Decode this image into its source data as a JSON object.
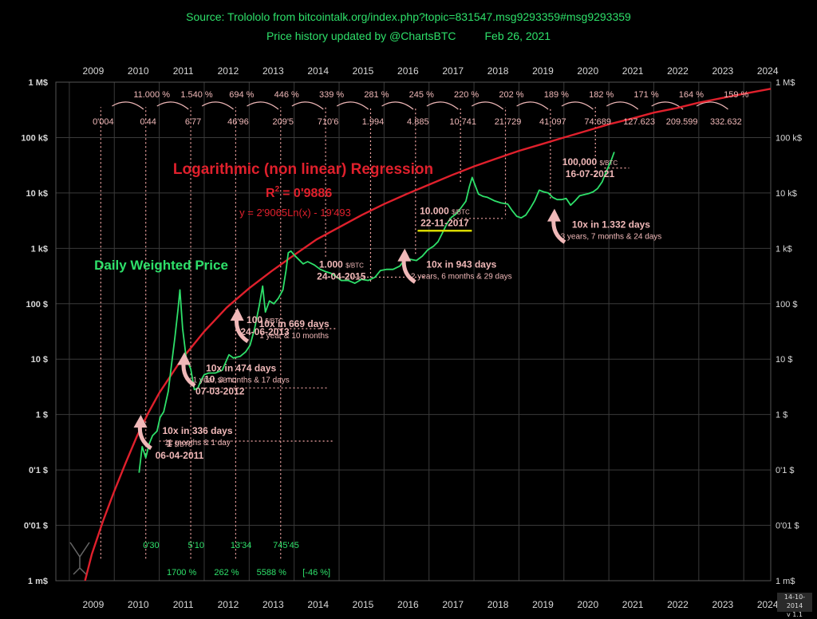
{
  "header": {
    "source": "Source: Trolololo from bitcointalk.org/index.php?topic=831547.msg9293359#msg9293359",
    "updated": "Price history updated by @ChartsBTC",
    "updated_date": "Feb 26, 2021"
  },
  "version_badge": {
    "date": "14-10-2014",
    "version": "v 1.1"
  },
  "colors": {
    "background": "#000000",
    "regression": "#e0202c",
    "price": "#2ee06a",
    "annotation": "#f0b8b8",
    "grid": "#3a3a3a",
    "axis_text": "#d8d8d8",
    "header_text": "#2ee06a",
    "dotted_guides": "#f4a6a6",
    "highlight_underline": "#d8d800"
  },
  "chart_data": {
    "type": "line",
    "scale": "log",
    "grid": true,
    "x_ticks": [
      "2009",
      "2010",
      "2011",
      "2012",
      "2013",
      "2014",
      "2015",
      "2016",
      "2017",
      "2018",
      "2019",
      "2020",
      "2021",
      "2022",
      "2023",
      "2024"
    ],
    "y_ticks_left": [
      "1 M$",
      "100 k$",
      "10 k$",
      "1 k$",
      "100 $",
      "10 $",
      "1 $",
      "0'1 $",
      "0'01 $",
      "1 m$"
    ],
    "y_ticks_right": [
      "1 M$",
      "100 k$",
      "10 k$",
      "1 k$",
      "100 $",
      "10 $",
      "1 $",
      "0'1 $",
      "0'01 $",
      "1 m$"
    ],
    "xlim": [
      2008.7,
      2024.6
    ],
    "ylim_decades": [
      -3,
      6
    ],
    "regression": {
      "name": "Logarithmic (non linear) Regression",
      "r_squared_label": "R",
      "r_squared_power": "2",
      "r_squared_value": "= 0'9886",
      "formula": "y = 2'9065Ln(x) - 19'493",
      "points": [
        [
          2009.35,
          -3.0
        ],
        [
          2009.5,
          -2.52
        ],
        [
          2009.75,
          -1.92
        ],
        [
          2010.0,
          -1.38
        ],
        [
          2010.25,
          -0.88
        ],
        [
          2010.5,
          -0.4
        ],
        [
          2010.75,
          0.02
        ],
        [
          2011.0,
          0.39
        ],
        [
          2011.5,
          1.0
        ],
        [
          2012.0,
          1.5
        ],
        [
          2012.5,
          1.93
        ],
        [
          2013.0,
          2.28
        ],
        [
          2013.5,
          2.59
        ],
        [
          2014.0,
          2.88
        ],
        [
          2014.5,
          3.16
        ],
        [
          2015.0,
          3.38
        ],
        [
          2015.5,
          3.6
        ],
        [
          2016.0,
          3.8
        ],
        [
          2016.5,
          3.98
        ],
        [
          2017.0,
          4.15
        ],
        [
          2017.5,
          4.32
        ],
        [
          2018.0,
          4.48
        ],
        [
          2018.5,
          4.62
        ],
        [
          2019.0,
          4.76
        ],
        [
          2019.5,
          4.88
        ],
        [
          2020.0,
          5.0
        ],
        [
          2020.5,
          5.12
        ],
        [
          2021.0,
          5.24
        ],
        [
          2021.5,
          5.34
        ],
        [
          2022.0,
          5.45
        ],
        [
          2022.5,
          5.53
        ],
        [
          2023.0,
          5.63
        ],
        [
          2023.5,
          5.71
        ],
        [
          2024.0,
          5.79
        ],
        [
          2024.6,
          5.88
        ]
      ]
    },
    "price_series": {
      "name": "Daily Weighted Price",
      "points": [
        [
          2010.55,
          -1.05
        ],
        [
          2010.62,
          -0.58
        ],
        [
          2010.7,
          -0.78
        ],
        [
          2010.78,
          -0.52
        ],
        [
          2010.85,
          -0.38
        ],
        [
          2010.95,
          -0.3
        ],
        [
          2011.02,
          -0.05
        ],
        [
          2011.1,
          0.05
        ],
        [
          2011.2,
          0.42
        ],
        [
          2011.28,
          0.95
        ],
        [
          2011.35,
          1.4
        ],
        [
          2011.42,
          1.92
        ],
        [
          2011.46,
          2.25
        ],
        [
          2011.52,
          1.55
        ],
        [
          2011.6,
          1.02
        ],
        [
          2011.7,
          0.82
        ],
        [
          2011.78,
          0.45
        ],
        [
          2011.86,
          0.48
        ],
        [
          2011.93,
          0.62
        ],
        [
          2012.0,
          0.72
        ],
        [
          2012.1,
          0.75
        ],
        [
          2012.25,
          0.75
        ],
        [
          2012.4,
          0.8
        ],
        [
          2012.55,
          1.08
        ],
        [
          2012.65,
          1.02
        ],
        [
          2012.8,
          1.05
        ],
        [
          2012.92,
          1.13
        ],
        [
          2013.02,
          1.25
        ],
        [
          2013.12,
          1.55
        ],
        [
          2013.22,
          1.95
        ],
        [
          2013.3,
          2.32
        ],
        [
          2013.36,
          1.85
        ],
        [
          2013.45,
          2.05
        ],
        [
          2013.55,
          2.0
        ],
        [
          2013.65,
          2.1
        ],
        [
          2013.75,
          2.25
        ],
        [
          2013.82,
          2.6
        ],
        [
          2013.87,
          2.92
        ],
        [
          2013.93,
          2.95
        ],
        [
          2014.0,
          2.88
        ],
        [
          2014.1,
          2.8
        ],
        [
          2014.2,
          2.72
        ],
        [
          2014.3,
          2.76
        ],
        [
          2014.45,
          2.7
        ],
        [
          2014.58,
          2.62
        ],
        [
          2014.7,
          2.58
        ],
        [
          2014.82,
          2.55
        ],
        [
          2014.95,
          2.48
        ],
        [
          2015.05,
          2.42
        ],
        [
          2015.2,
          2.42
        ],
        [
          2015.35,
          2.37
        ],
        [
          2015.5,
          2.44
        ],
        [
          2015.65,
          2.42
        ],
        [
          2015.8,
          2.48
        ],
        [
          2015.92,
          2.6
        ],
        [
          2016.05,
          2.62
        ],
        [
          2016.2,
          2.62
        ],
        [
          2016.35,
          2.68
        ],
        [
          2016.48,
          2.82
        ],
        [
          2016.6,
          2.8
        ],
        [
          2016.72,
          2.78
        ],
        [
          2016.85,
          2.86
        ],
        [
          2016.97,
          2.97
        ],
        [
          2017.1,
          3.04
        ],
        [
          2017.2,
          3.12
        ],
        [
          2017.3,
          3.28
        ],
        [
          2017.4,
          3.45
        ],
        [
          2017.5,
          3.56
        ],
        [
          2017.6,
          3.62
        ],
        [
          2017.72,
          3.74
        ],
        [
          2017.82,
          3.85
        ],
        [
          2017.9,
          4.12
        ],
        [
          2017.96,
          4.28
        ],
        [
          2018.02,
          4.15
        ],
        [
          2018.1,
          3.98
        ],
        [
          2018.2,
          3.94
        ],
        [
          2018.3,
          3.92
        ],
        [
          2018.45,
          3.86
        ],
        [
          2018.6,
          3.82
        ],
        [
          2018.75,
          3.8
        ],
        [
          2018.85,
          3.68
        ],
        [
          2018.95,
          3.58
        ],
        [
          2019.05,
          3.55
        ],
        [
          2019.15,
          3.6
        ],
        [
          2019.25,
          3.72
        ],
        [
          2019.35,
          3.86
        ],
        [
          2019.45,
          4.05
        ],
        [
          2019.55,
          4.02
        ],
        [
          2019.65,
          4.0
        ],
        [
          2019.75,
          3.92
        ],
        [
          2019.85,
          3.88
        ],
        [
          2019.95,
          3.88
        ],
        [
          2020.05,
          3.9
        ],
        [
          2020.15,
          3.78
        ],
        [
          2020.25,
          3.86
        ],
        [
          2020.35,
          3.95
        ],
        [
          2020.45,
          3.97
        ],
        [
          2020.55,
          3.99
        ],
        [
          2020.65,
          4.02
        ],
        [
          2020.75,
          4.08
        ],
        [
          2020.85,
          4.2
        ],
        [
          2020.95,
          4.4
        ],
        [
          2021.05,
          4.58
        ],
        [
          2021.12,
          4.74
        ]
      ]
    },
    "period_growth": [
      {
        "label": "11.000 %",
        "x": 2010.3
      },
      {
        "label": "1.540 %",
        "x": 2011.3
      },
      {
        "label": "694 %",
        "x": 2012.3
      },
      {
        "label": "446 %",
        "x": 2013.3
      },
      {
        "label": "339 %",
        "x": 2014.3
      },
      {
        "label": "281 %",
        "x": 2015.3
      },
      {
        "label": "245 %",
        "x": 2016.3
      },
      {
        "label": "220 %",
        "x": 2017.3
      },
      {
        "label": "202 %",
        "x": 2018.3
      },
      {
        "label": "189 %",
        "x": 2019.3
      },
      {
        "label": "182 %",
        "x": 2020.3
      },
      {
        "label": "171 %",
        "x": 2021.3
      },
      {
        "label": "164 %",
        "x": 2022.3
      },
      {
        "label": "159 %",
        "x": 2023.3
      }
    ],
    "regression_year_values": [
      {
        "label": "0'004",
        "x": 2009.7
      },
      {
        "label": "0'44",
        "x": 2010.7
      },
      {
        "label": "6'77",
        "x": 2011.7
      },
      {
        "label": "46'96",
        "x": 2012.7
      },
      {
        "label": "209'5",
        "x": 2013.7
      },
      {
        "label": "710'6",
        "x": 2014.7
      },
      {
        "label": "1.994",
        "x": 2015.7
      },
      {
        "label": "4.885",
        "x": 2016.7
      },
      {
        "label": "10.741",
        "x": 2017.7
      },
      {
        "label": "21.729",
        "x": 2018.7
      },
      {
        "label": "41.097",
        "x": 2019.7
      },
      {
        "label": "74.689",
        "x": 2020.7
      },
      {
        "label": "127.623",
        "x": 2021.62
      },
      {
        "label": "209.599",
        "x": 2022.57
      },
      {
        "label": "332.632",
        "x": 2023.55
      }
    ],
    "early_values": [
      {
        "label": "0'30",
        "x": 2010.5
      },
      {
        "label": "5'10",
        "x": 2011.5
      },
      {
        "label": "13'34",
        "x": 2012.5
      },
      {
        "label": "745'45",
        "x": 2013.5
      }
    ],
    "early_growth": [
      {
        "label": "1700 %",
        "x": 2011.0
      },
      {
        "label": "262 %",
        "x": 2012.0
      },
      {
        "label": "5588 %",
        "x": 2013.0
      },
      {
        "label": "[-46 %]",
        "x": 2014.0
      }
    ],
    "milestones": [
      {
        "price": "1",
        "unit": "$/BTC",
        "date": "06-04-2011",
        "x": 2011.45,
        "y": -0.58
      },
      {
        "price": "10",
        "unit": "$/BTC",
        "date": "07-03-2012",
        "x": 2012.35,
        "y": 0.58
      },
      {
        "price": "100",
        "unit": "$/BTC",
        "date": "24-06-2013",
        "x": 2013.35,
        "y": 1.65
      },
      {
        "price": "1.000",
        "unit": "$/BTC",
        "date": "24-04-2015",
        "x": 2015.05,
        "y": 2.65
      },
      {
        "price": "10.000",
        "unit": "$/BTC",
        "date": "22-11-2017",
        "x": 2017.35,
        "y": 3.62
      },
      {
        "price": "100,000",
        "unit": "$/BTC",
        "date": "16-07-2021",
        "x": 2020.58,
        "y": 4.5
      }
    ],
    "intervals": [
      {
        "title": "10x in 336 days",
        "sub": "11 months & 1 day",
        "x": 2011.85,
        "y": -0.35
      },
      {
        "title": "10x in 474 days",
        "sub": "1 year, 3 months & 17 days",
        "x": 2012.82,
        "y": 0.78
      },
      {
        "title": "10x in 669 days",
        "sub": "1 year & 10 months",
        "x": 2014.0,
        "y": 1.58
      },
      {
        "title": "10x in 943 days",
        "sub": "2 years, 6 months & 29 days",
        "x": 2017.72,
        "y": 2.65
      },
      {
        "title": "10x  in 1.332 days",
        "sub": "3 years, 7 months & 24 days",
        "x": 2021.05,
        "y": 3.37
      }
    ]
  }
}
